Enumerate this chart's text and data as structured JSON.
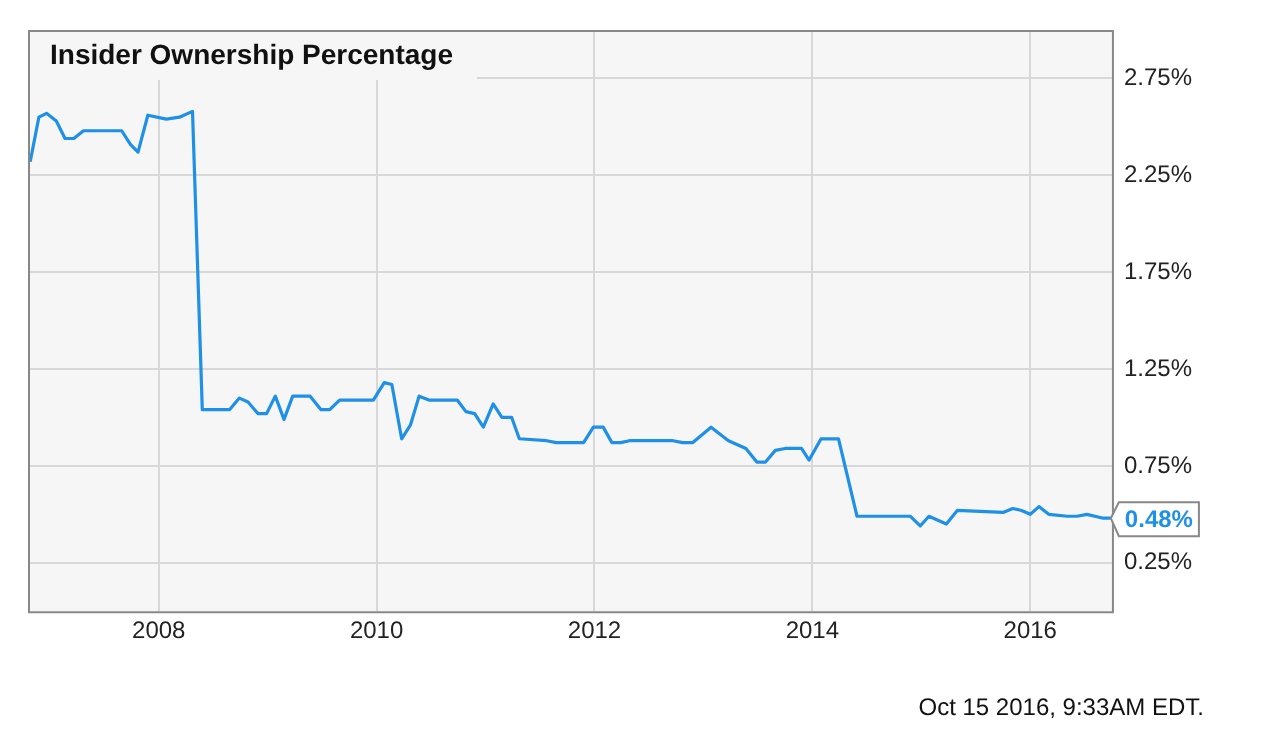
{
  "chart_data": {
    "type": "line",
    "title": "Insider Ownership Percentage",
    "x": [
      2006.82,
      2006.9,
      2006.97,
      2007.06,
      2007.14,
      2007.22,
      2007.31,
      2007.66,
      2007.74,
      2007.81,
      2007.9,
      2008.07,
      2008.19,
      2008.31,
      2008.4,
      2008.65,
      2008.74,
      2008.82,
      2008.91,
      2008.99,
      2009.07,
      2009.15,
      2009.23,
      2009.39,
      2009.49,
      2009.57,
      2009.66,
      2009.97,
      2010.07,
      2010.14,
      2010.23,
      2010.31,
      2010.39,
      2010.48,
      2010.74,
      2010.82,
      2010.9,
      2010.98,
      2011.07,
      2011.15,
      2011.24,
      2011.31,
      2011.56,
      2011.65,
      2011.9,
      2011.99,
      2012.08,
      2012.16,
      2012.24,
      2012.32,
      2012.72,
      2012.81,
      2012.9,
      2013.07,
      2013.23,
      2013.39,
      2013.49,
      2013.57,
      2013.66,
      2013.75,
      2013.9,
      2013.97,
      2014.08,
      2014.24,
      2014.41,
      2014.73,
      2014.9,
      2014.99,
      2015.07,
      2015.23,
      2015.33,
      2015.75,
      2015.84,
      2015.92,
      2016.0,
      2016.08,
      2016.17,
      2016.34,
      2016.43,
      2016.52,
      2016.67,
      2016.74
    ],
    "series": [
      {
        "color": "#1e90e8",
        "values": [
          2.32,
          2.55,
          2.57,
          2.53,
          2.44,
          2.44,
          2.48,
          2.48,
          2.41,
          2.37,
          2.56,
          2.54,
          2.55,
          2.58,
          1.04,
          1.04,
          1.1,
          1.08,
          1.02,
          1.02,
          1.11,
          0.99,
          1.11,
          1.11,
          1.04,
          1.04,
          1.09,
          1.09,
          1.18,
          1.17,
          0.89,
          0.96,
          1.11,
          1.09,
          1.09,
          1.03,
          1.02,
          0.95,
          1.07,
          1.0,
          1.0,
          0.89,
          0.88,
          0.87,
          0.87,
          0.95,
          0.95,
          0.87,
          0.87,
          0.88,
          0.88,
          0.87,
          0.87,
          0.95,
          0.88,
          0.84,
          0.77,
          0.77,
          0.83,
          0.84,
          0.84,
          0.78,
          0.89,
          0.89,
          0.49,
          0.49,
          0.49,
          0.44,
          0.49,
          0.45,
          0.52,
          0.51,
          0.53,
          0.52,
          0.5,
          0.54,
          0.5,
          0.49,
          0.49,
          0.5,
          0.48,
          0.48
        ]
      }
    ],
    "xlim": [
      2006.8,
      2016.75
    ],
    "xticks": [
      2008,
      2010,
      2012,
      2014,
      2016
    ],
    "ylim": [
      0,
      3
    ],
    "yticks": [
      {
        "value": 0.25,
        "label": "0.25%"
      },
      {
        "value": 0.75,
        "label": "0.75%"
      },
      {
        "value": 1.25,
        "label": "1.25%"
      },
      {
        "value": 1.75,
        "label": "1.75%"
      },
      {
        "value": 2.25,
        "label": "2.25%"
      },
      {
        "value": 2.75,
        "label": "2.75%"
      }
    ],
    "grid": true,
    "marker": "none",
    "line_style": "solid",
    "annotations": [
      {
        "text": "0.48%",
        "x": 2016.74,
        "y": 0.48
      },
      "Oct 15 2016, 9:33AM EDT."
    ]
  }
}
